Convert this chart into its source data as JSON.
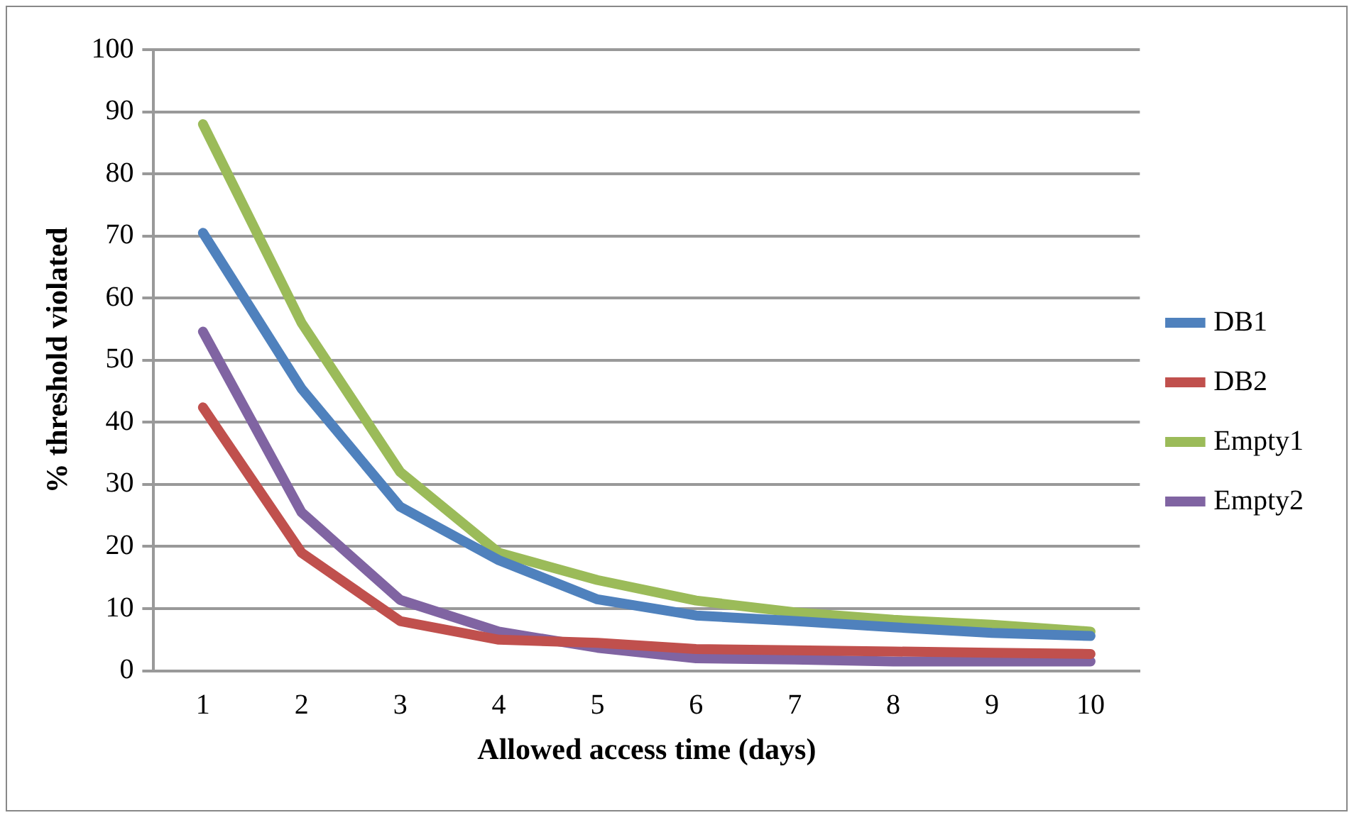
{
  "chart_data": {
    "type": "line",
    "xlabel": "Allowed access time (days)",
    "ylabel": "% threshold violated",
    "categories": [
      "1",
      "2",
      "3",
      "4",
      "5",
      "6",
      "7",
      "8",
      "9",
      "10"
    ],
    "series": [
      {
        "name": "DB1",
        "color": "#4f81bd",
        "values": [
          70.5,
          45.4,
          26.4,
          17.8,
          11.5,
          8.9,
          8,
          7,
          6.1,
          5.6
        ]
      },
      {
        "name": "DB2",
        "color": "#c0504d",
        "values": [
          42.4,
          19,
          8,
          5,
          4.5,
          3.5,
          3.3,
          3.1,
          2.9,
          2.7
        ]
      },
      {
        "name": "Empty1",
        "color": "#9bbb59",
        "values": [
          88,
          56,
          32,
          19,
          14.6,
          11.3,
          9.4,
          8.2,
          7.4,
          6.3
        ]
      },
      {
        "name": "Empty2",
        "color": "#8064a2",
        "values": [
          54.6,
          25.5,
          11.4,
          6.3,
          3.7,
          2,
          1.8,
          1.5,
          1.5,
          1.5
        ]
      }
    ],
    "ylim": [
      0,
      100
    ],
    "yticks": [
      0,
      10,
      20,
      30,
      40,
      50,
      60,
      70,
      80,
      90,
      100
    ],
    "grid": "y",
    "legend": "right",
    "marker": "none",
    "line_style": "solid"
  }
}
